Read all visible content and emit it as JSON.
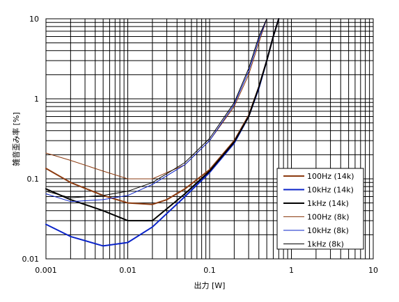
{
  "chart_data": {
    "type": "line",
    "xlabel": "出力 [W]",
    "ylabel": "雑音歪み率 [%]",
    "xscale": "log",
    "yscale": "log",
    "xlim": [
      0.001,
      10
    ],
    "ylim": [
      0.01,
      10
    ],
    "x_ticks": [
      {
        "value": 0.001,
        "label": "0.001"
      },
      {
        "value": 0.01,
        "label": "0.01"
      },
      {
        "value": 0.1,
        "label": "0.1"
      },
      {
        "value": 1,
        "label": "1"
      },
      {
        "value": 10,
        "label": "10"
      }
    ],
    "y_ticks": [
      {
        "value": 10,
        "label": "10"
      },
      {
        "value": 1,
        "label": "1"
      },
      {
        "value": 0.1,
        "label": "0.1"
      },
      {
        "value": 0.01,
        "label": "0.01"
      }
    ],
    "grid": true,
    "legend": "bottom-right",
    "series": [
      {
        "name": "100Hz (14k)",
        "color": "#8b3a0f",
        "width": 2,
        "points": [
          [
            0.001,
            0.135
          ],
          [
            0.002,
            0.09
          ],
          [
            0.005,
            0.062
          ],
          [
            0.01,
            0.05
          ],
          [
            0.02,
            0.048
          ],
          [
            0.03,
            0.055
          ],
          [
            0.05,
            0.075
          ],
          [
            0.1,
            0.13
          ],
          [
            0.2,
            0.3
          ],
          [
            0.3,
            0.62
          ],
          [
            0.4,
            1.4
          ],
          [
            0.5,
            3.0
          ],
          [
            0.6,
            6.0
          ],
          [
            0.7,
            10.0
          ]
        ]
      },
      {
        "name": "10kHz (14k)",
        "color": "#0a23c8",
        "width": 2,
        "points": [
          [
            0.001,
            0.027
          ],
          [
            0.002,
            0.019
          ],
          [
            0.005,
            0.0145
          ],
          [
            0.01,
            0.016
          ],
          [
            0.02,
            0.025
          ],
          [
            0.05,
            0.06
          ],
          [
            0.1,
            0.12
          ],
          [
            0.2,
            0.28
          ],
          [
            0.3,
            0.6
          ],
          [
            0.4,
            1.35
          ],
          [
            0.5,
            3.0
          ],
          [
            0.6,
            6.0
          ],
          [
            0.7,
            10.0
          ]
        ]
      },
      {
        "name": "1kHz (14k)",
        "color": "#000000",
        "width": 2,
        "points": [
          [
            0.001,
            0.075
          ],
          [
            0.002,
            0.055
          ],
          [
            0.005,
            0.04
          ],
          [
            0.01,
            0.03
          ],
          [
            0.02,
            0.03
          ],
          [
            0.05,
            0.065
          ],
          [
            0.1,
            0.125
          ],
          [
            0.2,
            0.29
          ],
          [
            0.3,
            0.6
          ],
          [
            0.4,
            1.4
          ],
          [
            0.5,
            3.0
          ],
          [
            0.6,
            6.0
          ],
          [
            0.7,
            10.0
          ]
        ]
      },
      {
        "name": "100Hz (8k)",
        "color": "#8b3a0f",
        "width": 1,
        "points": [
          [
            0.001,
            0.21
          ],
          [
            0.002,
            0.17
          ],
          [
            0.005,
            0.125
          ],
          [
            0.01,
            0.1
          ],
          [
            0.02,
            0.1
          ],
          [
            0.05,
            0.15
          ],
          [
            0.1,
            0.3
          ],
          [
            0.2,
            0.8
          ],
          [
            0.3,
            2.0
          ],
          [
            0.4,
            5.0
          ],
          [
            0.5,
            10.0
          ]
        ]
      },
      {
        "name": "10kHz (8k)",
        "color": "#0a23c8",
        "width": 1,
        "points": [
          [
            0.001,
            0.065
          ],
          [
            0.002,
            0.052
          ],
          [
            0.005,
            0.055
          ],
          [
            0.01,
            0.062
          ],
          [
            0.02,
            0.085
          ],
          [
            0.05,
            0.15
          ],
          [
            0.1,
            0.3
          ],
          [
            0.2,
            0.85
          ],
          [
            0.3,
            2.2
          ],
          [
            0.4,
            5.5
          ],
          [
            0.5,
            10.0
          ]
        ]
      },
      {
        "name": "1kHz (8k)",
        "color": "#000000",
        "width": 1,
        "points": [
          [
            0.001,
            0.07
          ],
          [
            0.002,
            0.058
          ],
          [
            0.005,
            0.062
          ],
          [
            0.01,
            0.07
          ],
          [
            0.02,
            0.09
          ],
          [
            0.05,
            0.16
          ],
          [
            0.1,
            0.32
          ],
          [
            0.2,
            0.9
          ],
          [
            0.3,
            2.4
          ],
          [
            0.4,
            6.0
          ],
          [
            0.5,
            10.0
          ]
        ]
      }
    ]
  }
}
